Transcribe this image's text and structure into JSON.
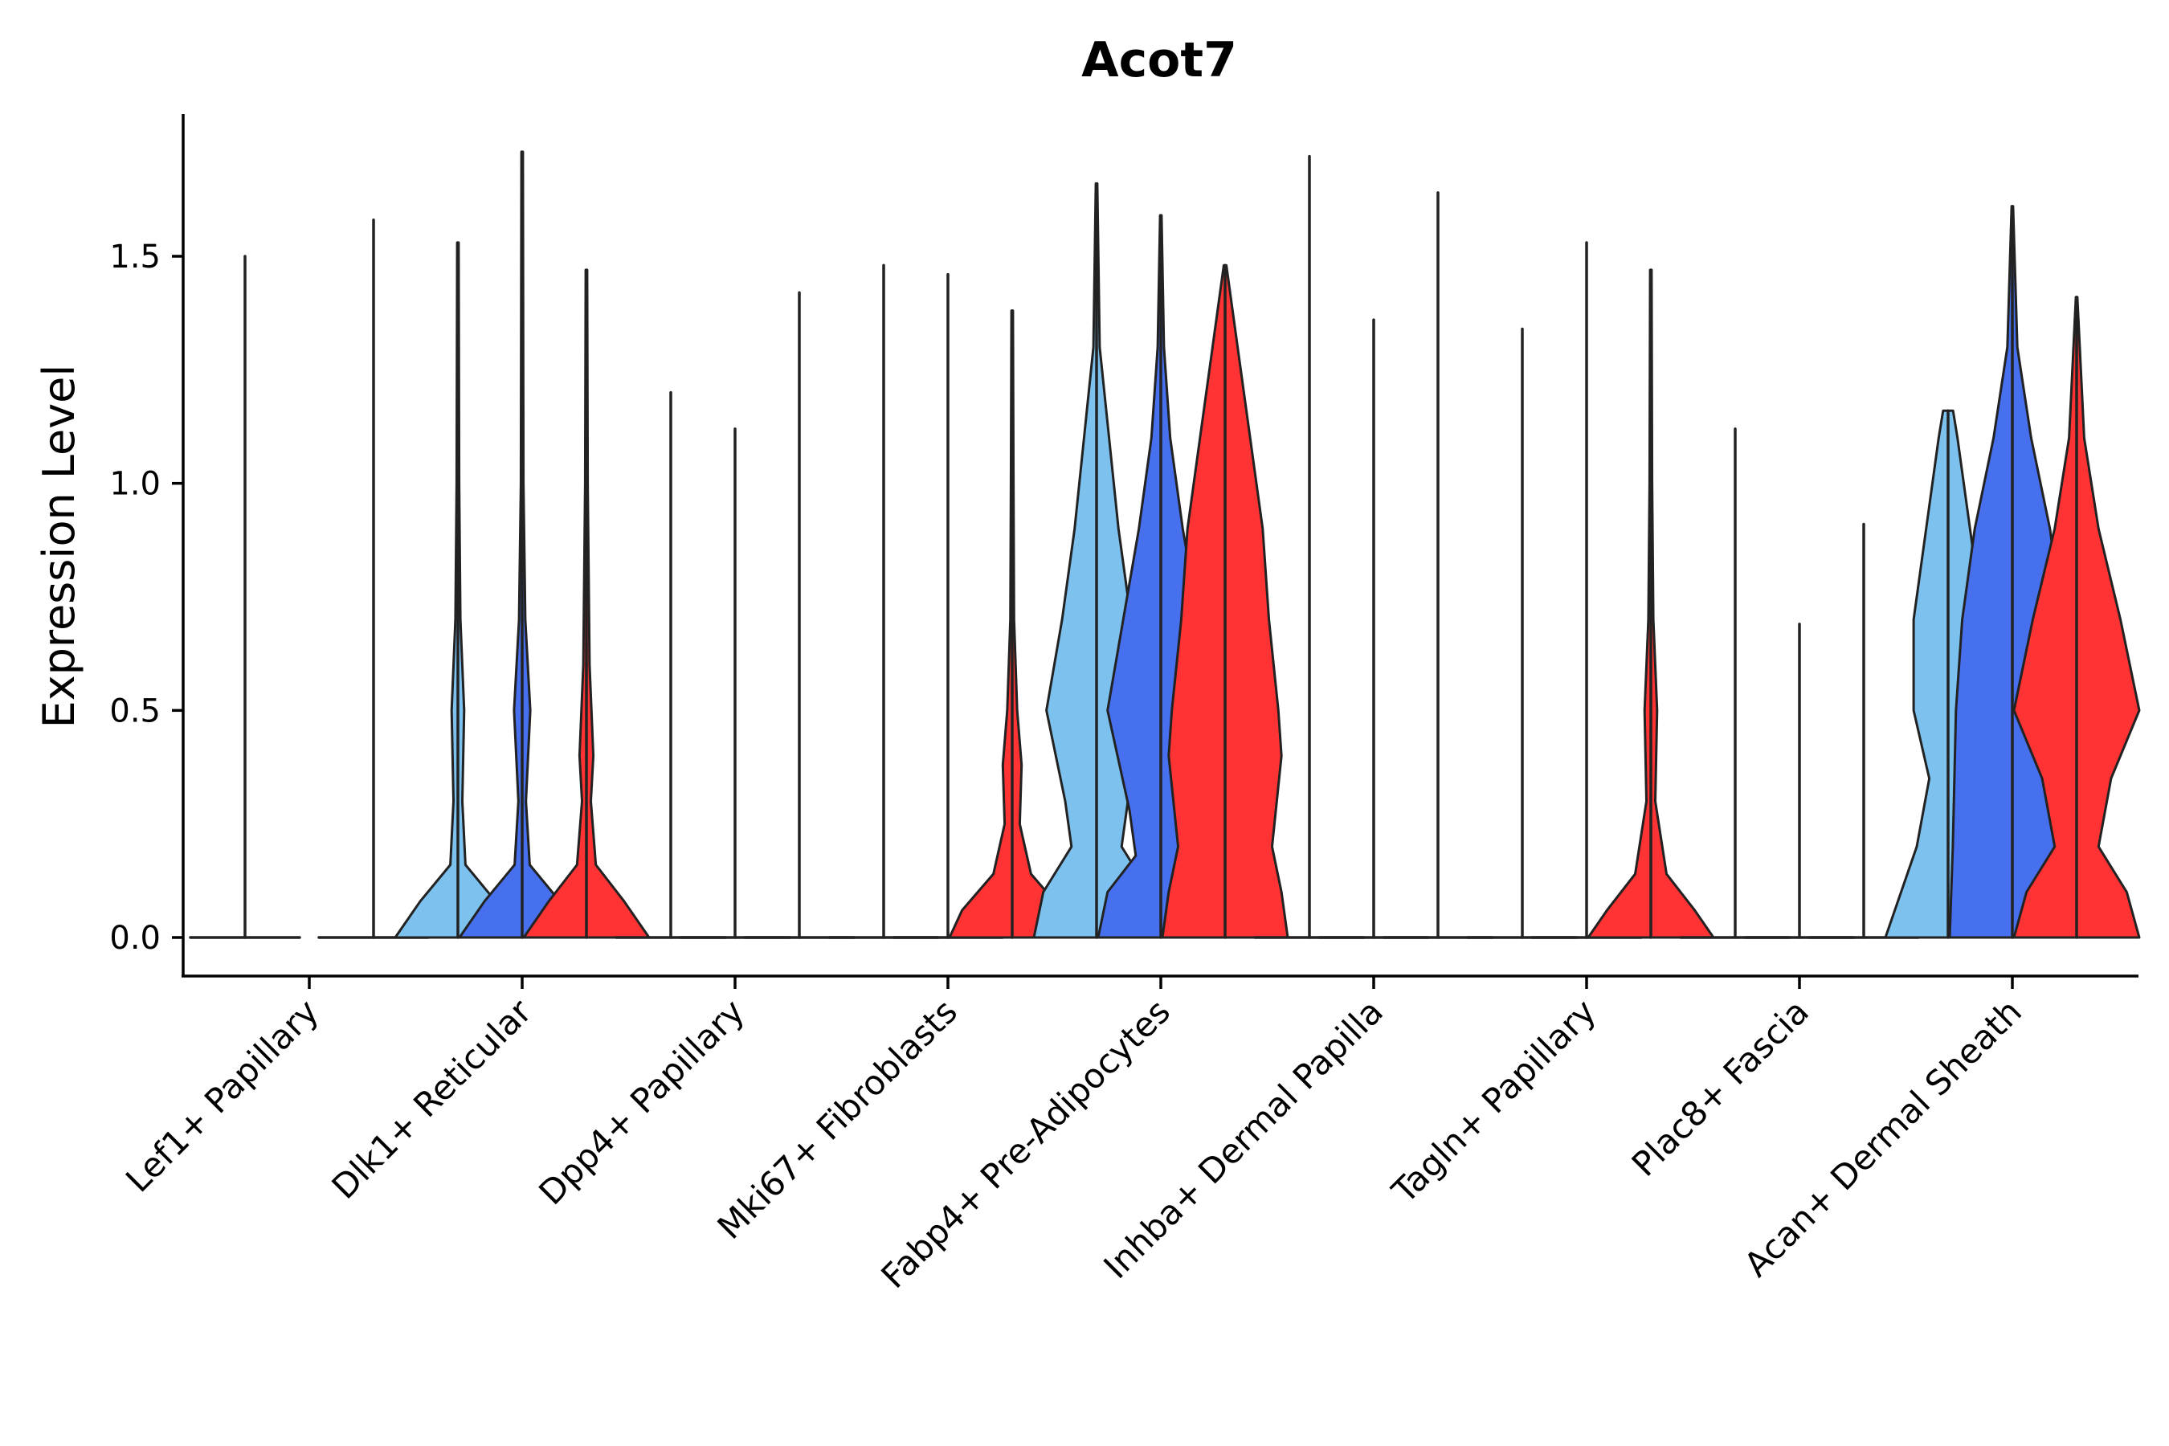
{
  "chart_data": {
    "type": "violin",
    "title": "Acot7",
    "xlabel": "",
    "ylabel": "Expression Level",
    "ylim": [
      -0.09,
      1.82
    ],
    "yticks": [
      0.0,
      0.5,
      1.0,
      1.5
    ],
    "ytick_labels": [
      "0.0",
      "0.5",
      "1.0",
      "1.5"
    ],
    "categories": [
      "Lef1+ Papillary",
      "Dlk1+ Reticular",
      "Dpp4+ Papillary",
      "Mki67+ Fibroblasts",
      "Fabp4+ Pre-Adipocytes",
      "Inhba+ Dermal Papilla",
      "Tagln+ Papillary",
      "Plac8+ Fascia",
      "Acan+ Dermal Sheath"
    ],
    "series_colors": [
      "#7DC1EE",
      "#4670EE",
      "#FF3333"
    ],
    "violins": [
      [
        {
          "max": 1.5,
          "profile": []
        },
        {
          "max": 0,
          "profile": []
        },
        {
          "max": 1.58,
          "profile": []
        }
      ],
      [
        {
          "max": 1.53,
          "profile": [
            [
              0,
              1.0
            ],
            [
              0.08,
              0.6
            ],
            [
              0.16,
              0.12
            ],
            [
              0.3,
              0.07
            ],
            [
              0.5,
              0.1
            ],
            [
              0.7,
              0.04
            ],
            [
              1.0,
              0.02
            ],
            [
              1.53,
              0.01
            ]
          ]
        },
        {
          "max": 1.73,
          "profile": [
            [
              0,
              1.0
            ],
            [
              0.08,
              0.6
            ],
            [
              0.16,
              0.12
            ],
            [
              0.3,
              0.06
            ],
            [
              0.5,
              0.13
            ],
            [
              0.7,
              0.05
            ],
            [
              1.0,
              0.02
            ],
            [
              1.73,
              0.01
            ]
          ]
        },
        {
          "max": 1.47,
          "profile": [
            [
              0,
              1.0
            ],
            [
              0.08,
              0.6
            ],
            [
              0.16,
              0.15
            ],
            [
              0.3,
              0.07
            ],
            [
              0.4,
              0.11
            ],
            [
              0.6,
              0.05
            ],
            [
              1.0,
              0.02
            ],
            [
              1.47,
              0.01
            ]
          ]
        }
      ],
      [
        {
          "max": 1.2,
          "profile": []
        },
        {
          "max": 1.12,
          "profile": []
        },
        {
          "max": 1.42,
          "profile": []
        }
      ],
      [
        {
          "max": 1.48,
          "profile": []
        },
        {
          "max": 1.46,
          "profile": []
        },
        {
          "max": 1.38,
          "profile": [
            [
              0,
              1.0
            ],
            [
              0.06,
              0.8
            ],
            [
              0.14,
              0.3
            ],
            [
              0.25,
              0.12
            ],
            [
              0.38,
              0.15
            ],
            [
              0.5,
              0.08
            ],
            [
              0.7,
              0.03
            ],
            [
              1.0,
              0.02
            ],
            [
              1.38,
              0.01
            ]
          ]
        }
      ],
      [
        {
          "max": 1.66,
          "profile": [
            [
              0,
              1.0
            ],
            [
              0.1,
              0.85
            ],
            [
              0.2,
              0.4
            ],
            [
              0.3,
              0.5
            ],
            [
              0.5,
              0.8
            ],
            [
              0.7,
              0.55
            ],
            [
              0.9,
              0.35
            ],
            [
              1.1,
              0.2
            ],
            [
              1.3,
              0.05
            ],
            [
              1.66,
              0.01
            ]
          ]
        },
        {
          "max": 1.59,
          "profile": [
            [
              0,
              1.0
            ],
            [
              0.1,
              0.85
            ],
            [
              0.18,
              0.4
            ],
            [
              0.28,
              0.5
            ],
            [
              0.5,
              0.85
            ],
            [
              0.7,
              0.6
            ],
            [
              0.9,
              0.35
            ],
            [
              1.1,
              0.15
            ],
            [
              1.3,
              0.05
            ],
            [
              1.59,
              0.01
            ]
          ]
        },
        {
          "max": 1.48,
          "profile": [
            [
              0,
              1.0
            ],
            [
              0.1,
              0.9
            ],
            [
              0.2,
              0.75
            ],
            [
              0.4,
              0.9
            ],
            [
              0.5,
              0.85
            ],
            [
              0.7,
              0.7
            ],
            [
              0.9,
              0.6
            ],
            [
              1.1,
              0.4
            ],
            [
              1.3,
              0.2
            ],
            [
              1.48,
              0.02
            ]
          ]
        }
      ],
      [
        {
          "max": 1.72,
          "profile": []
        },
        {
          "max": 1.36,
          "profile": []
        },
        {
          "max": 1.64,
          "profile": []
        }
      ],
      [
        {
          "max": 1.34,
          "profile": []
        },
        {
          "max": 1.53,
          "profile": []
        },
        {
          "max": 1.47,
          "profile": [
            [
              0,
              1.0
            ],
            [
              0.06,
              0.7
            ],
            [
              0.14,
              0.25
            ],
            [
              0.3,
              0.07
            ],
            [
              0.5,
              0.1
            ],
            [
              0.7,
              0.04
            ],
            [
              1.0,
              0.02
            ],
            [
              1.47,
              0.01
            ]
          ]
        }
      ],
      [
        {
          "max": 1.12,
          "profile": []
        },
        {
          "max": 0.69,
          "profile": []
        },
        {
          "max": 0.91,
          "profile": []
        }
      ],
      [
        {
          "max": 1.16,
          "profile": [
            [
              0,
              1.0
            ],
            [
              0.2,
              0.5
            ],
            [
              0.35,
              0.3
            ],
            [
              0.5,
              0.55
            ],
            [
              0.7,
              0.55
            ],
            [
              0.9,
              0.35
            ],
            [
              1.1,
              0.15
            ],
            [
              1.16,
              0.08
            ]
          ]
        },
        {
          "max": 1.61,
          "profile": [
            [
              0,
              1.0
            ],
            [
              0.2,
              0.95
            ],
            [
              0.5,
              0.9
            ],
            [
              0.7,
              0.8
            ],
            [
              0.9,
              0.6
            ],
            [
              1.1,
              0.3
            ],
            [
              1.3,
              0.08
            ],
            [
              1.61,
              0.01
            ]
          ]
        },
        {
          "max": 1.41,
          "profile": [
            [
              0,
              1.0
            ],
            [
              0.1,
              0.8
            ],
            [
              0.2,
              0.35
            ],
            [
              0.35,
              0.55
            ],
            [
              0.5,
              1.0
            ],
            [
              0.7,
              0.7
            ],
            [
              0.9,
              0.35
            ],
            [
              1.1,
              0.12
            ],
            [
              1.41,
              0.01
            ]
          ]
        }
      ]
    ]
  }
}
